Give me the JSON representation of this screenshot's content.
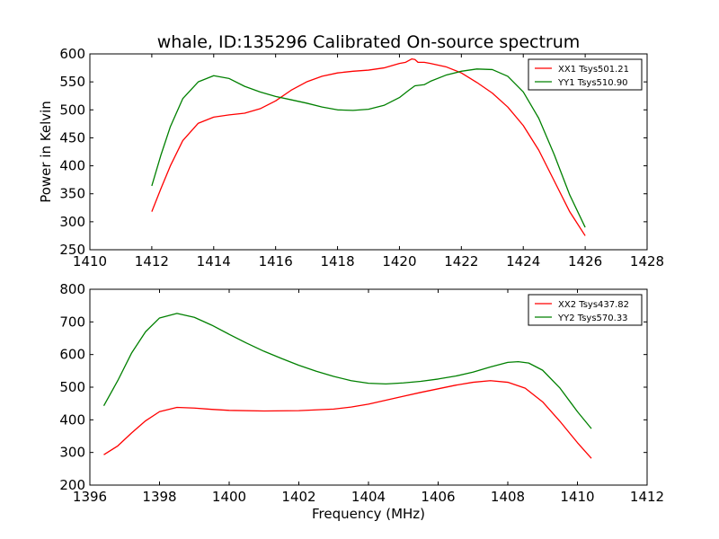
{
  "figure": {
    "title": "whale, ID:135296 Calibrated On-source spectrum"
  },
  "chart_data": [
    {
      "type": "line",
      "title": "whale, ID:135296 Calibrated On-source spectrum",
      "xlabel": "",
      "ylabel": "Power in Kelvin",
      "xlim": [
        1410,
        1428
      ],
      "ylim": [
        250,
        600
      ],
      "xticks": [
        1410,
        1412,
        1414,
        1416,
        1418,
        1420,
        1422,
        1424,
        1426,
        1428
      ],
      "yticks": [
        250,
        300,
        350,
        400,
        450,
        500,
        550,
        600
      ],
      "legend": "top-right",
      "series": [
        {
          "name": "XX1 Tsys501.21",
          "color": "#ff0000",
          "x": [
            1412.0,
            1412.3,
            1412.6,
            1413.0,
            1413.5,
            1414.0,
            1414.5,
            1415.0,
            1415.5,
            1416.0,
            1416.5,
            1417.0,
            1417.5,
            1418.0,
            1418.5,
            1419.0,
            1419.5,
            1420.0,
            1420.2,
            1420.4,
            1420.5,
            1420.6,
            1420.8,
            1421.0,
            1421.5,
            1422.0,
            1422.5,
            1423.0,
            1423.5,
            1424.0,
            1424.5,
            1425.0,
            1425.5,
            1426.0
          ],
          "y": [
            318,
            360,
            400,
            445,
            476,
            487,
            491,
            494,
            502,
            516,
            535,
            550,
            560,
            566,
            569,
            571,
            575,
            583,
            585,
            591,
            590,
            585,
            585,
            583,
            577,
            566,
            549,
            530,
            505,
            472,
            428,
            373,
            318,
            275
          ]
        },
        {
          "name": "YY1 Tsys510.90",
          "color": "#008000",
          "x": [
            1412.0,
            1412.3,
            1412.6,
            1413.0,
            1413.5,
            1414.0,
            1414.5,
            1415.0,
            1415.5,
            1416.0,
            1416.5,
            1417.0,
            1417.5,
            1418.0,
            1418.5,
            1419.0,
            1419.5,
            1420.0,
            1420.3,
            1420.5,
            1420.8,
            1421.0,
            1421.5,
            1422.0,
            1422.5,
            1423.0,
            1423.5,
            1424.0,
            1424.5,
            1425.0,
            1425.5,
            1426.0
          ],
          "y": [
            364,
            420,
            470,
            520,
            550,
            561,
            556,
            542,
            532,
            524,
            518,
            512,
            505,
            500,
            499,
            501,
            508,
            522,
            535,
            543,
            545,
            551,
            562,
            569,
            573,
            572,
            560,
            532,
            485,
            420,
            348,
            290
          ]
        }
      ]
    },
    {
      "type": "line",
      "title": "",
      "xlabel": "Frequency (MHz)",
      "ylabel": "",
      "xlim": [
        1396,
        1412
      ],
      "ylim": [
        200,
        800
      ],
      "xticks": [
        1396,
        1398,
        1400,
        1402,
        1404,
        1406,
        1408,
        1410,
        1412
      ],
      "yticks": [
        200,
        300,
        400,
        500,
        600,
        700,
        800
      ],
      "legend": "top-right",
      "series": [
        {
          "name": "XX2 Tsys437.82",
          "color": "#ff0000",
          "x": [
            1396.4,
            1396.8,
            1397.2,
            1397.6,
            1398.0,
            1398.5,
            1399.0,
            1399.5,
            1400.0,
            1401.0,
            1402.0,
            1403.0,
            1403.5,
            1404.0,
            1404.5,
            1405.0,
            1405.5,
            1406.0,
            1406.5,
            1407.0,
            1407.5,
            1408.0,
            1408.5,
            1409.0,
            1409.5,
            1410.0,
            1410.4
          ],
          "y": [
            293,
            320,
            360,
            397,
            425,
            438,
            436,
            432,
            429,
            427,
            428,
            433,
            439,
            448,
            460,
            472,
            484,
            495,
            506,
            515,
            520,
            515,
            497,
            455,
            395,
            330,
            282
          ]
        },
        {
          "name": "YY2 Tsys570.33",
          "color": "#008000",
          "x": [
            1396.4,
            1396.8,
            1397.2,
            1397.6,
            1398.0,
            1398.5,
            1399.0,
            1399.5,
            1400.0,
            1400.5,
            1401.0,
            1401.5,
            1402.0,
            1402.5,
            1403.0,
            1403.5,
            1404.0,
            1404.5,
            1405.0,
            1405.5,
            1406.0,
            1406.5,
            1407.0,
            1407.5,
            1408.0,
            1408.3,
            1408.6,
            1409.0,
            1409.5,
            1410.0,
            1410.4
          ],
          "y": [
            443,
            520,
            605,
            670,
            712,
            726,
            714,
            690,
            662,
            635,
            610,
            588,
            567,
            549,
            533,
            520,
            512,
            510,
            513,
            518,
            525,
            534,
            546,
            562,
            576,
            578,
            574,
            552,
            497,
            425,
            373
          ]
        }
      ]
    }
  ]
}
